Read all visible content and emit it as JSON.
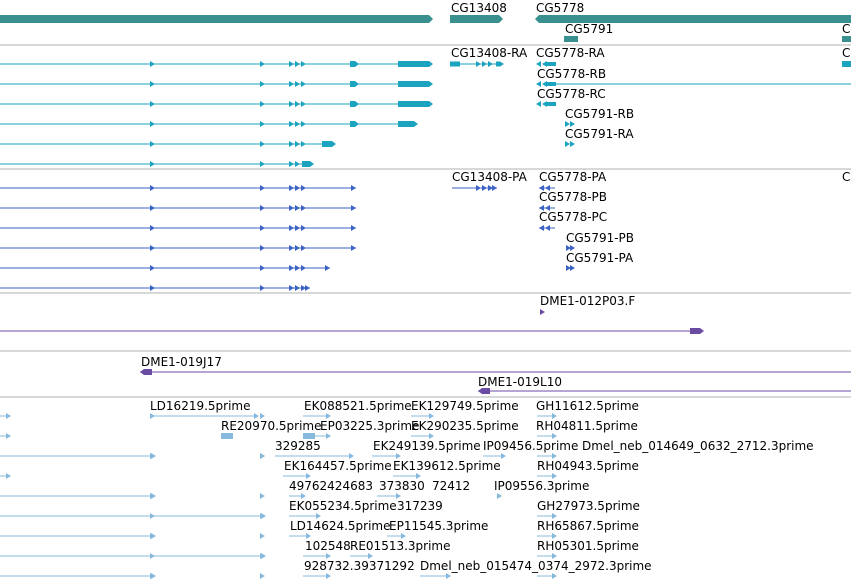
{
  "colors": {
    "gene": "#3a8f8f",
    "transcript": "#1ba3bf",
    "protein": "#3a63c4",
    "clone": "#6a4ca3",
    "est": "#87b9dd",
    "divider": "#b0b0b0"
  },
  "track_icons": {
    "strand_forward": "arrowhead-right",
    "strand_reverse": "arrowhead-left",
    "feature_end": "track-end-arrow"
  },
  "genes": [
    "CG13408",
    "CG5778",
    "CG5791",
    "C"
  ],
  "transcripts": [
    "CG13408-RA",
    "CG5778-RA",
    "CG5778-RB",
    "CG5778-RC",
    "CG5791-RB",
    "CG5791-RA",
    "C"
  ],
  "proteins": [
    "CG13408-PA",
    "CG5778-PA",
    "CG5778-PB",
    "CG5778-PC",
    "CG5791-PB",
    "CG5791-PA",
    "C"
  ],
  "clones": [
    "DME1-012P03.F",
    "DME1-019J17",
    "DME1-019L10"
  ],
  "ests": [
    "LD16219.5prime",
    "EK088521.5prime",
    "EK129749.5prime",
    "GH11612.5prime",
    "RE20970.5prime",
    "EP03225.3prime",
    "EK290235.5prime",
    "RH04811.5prime",
    "329285",
    "EK249139.5prime",
    "IP09456.5prime",
    "Dmel_neb_014649_0632_2712.3prime",
    "EK164457.5prime",
    "EK139612.5prime",
    "RH04943.5prime",
    "49762424683",
    "373830",
    "72412",
    "IP09556.3prime",
    "EK055234.5prime",
    "317239",
    "GH27973.5prime",
    "LD14624.5prime",
    "EP11545.3prime",
    "RH65867.5prime",
    "102548",
    "RE01513.3prime",
    "RH05301.5prime",
    "928732.39371292",
    "Dmel_neb_015474_0374_2972.3prime"
  ]
}
